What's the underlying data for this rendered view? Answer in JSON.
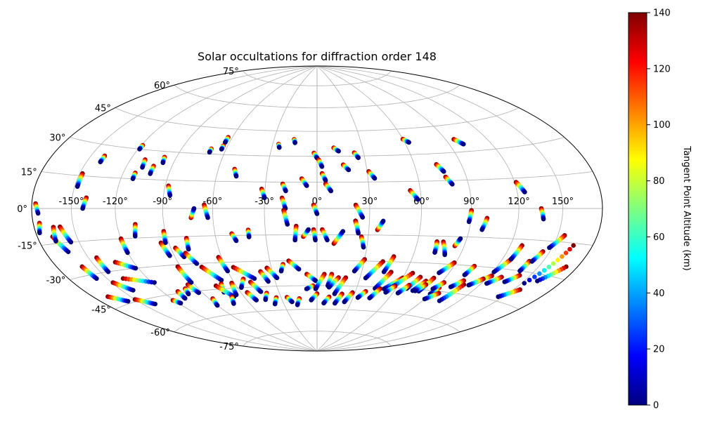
{
  "chart_data": {
    "type": "scatter",
    "projection": "hammer",
    "title": "Solar occultations for diffraction order 148",
    "grid": true,
    "lon_ticks": [
      -150,
      -120,
      -90,
      -60,
      -30,
      0,
      30,
      60,
      90,
      120,
      150
    ],
    "lon_tick_labels": [
      "-150°",
      "-120°",
      "-90°",
      "-60°",
      "-30°",
      "0°",
      "30°",
      "60°",
      "90°",
      "120°",
      "150°"
    ],
    "lat_ticks": [
      75,
      60,
      45,
      30,
      15,
      0,
      -15,
      -30,
      -45,
      -60,
      -75
    ],
    "lat_tick_labels": [
      "75°",
      "60°",
      "45°",
      "30°",
      "15°",
      "0°",
      "-15°",
      "-30°",
      "-45°",
      "-60°",
      "-75°"
    ],
    "colorbar": {
      "label": "Tangent Point Altitude (km)",
      "range": [
        0,
        140
      ],
      "ticks": [
        0,
        20,
        40,
        60,
        80,
        100,
        120,
        140
      ],
      "tick_labels": [
        "0",
        "20",
        "40",
        "60",
        "80",
        "100",
        "120",
        "140"
      ],
      "colormap": "jet",
      "colors": [
        "#00007f",
        "#0000ff",
        "#007fff",
        "#00ffff",
        "#7fff7f",
        "#ffff00",
        "#ff7f00",
        "#ff0000",
        "#7f0000"
      ]
    },
    "tracks": [
      [
        -177,
        2,
        -175,
        -2
      ],
      [
        -175,
        -6,
        -177,
        -10
      ],
      [
        -168,
        -12,
        -162,
        -19
      ],
      [
        -160,
        -8,
        -156,
        -15
      ],
      [
        -165,
        -8,
        -167,
        -14
      ],
      [
        -160,
        -26,
        -158,
        -32
      ],
      [
        -148,
        16,
        -148,
        10
      ],
      [
        -140,
        5,
        -142,
        0
      ],
      [
        -140,
        25,
        -140,
        22
      ],
      [
        -119,
        32,
        -119,
        30
      ],
      [
        -110,
        25,
        -109,
        21
      ],
      [
        -112,
        18,
        -112,
        15
      ],
      [
        -98,
        27,
        -97,
        24
      ],
      [
        -102,
        22,
        -102,
        18
      ],
      [
        -88,
        12,
        -86,
        7
      ],
      [
        -70,
        33,
        -70,
        31
      ],
      [
        -63,
        40,
        -63,
        37
      ],
      [
        -63,
        35,
        -63,
        33
      ],
      [
        -50,
        22,
        -48,
        18
      ],
      [
        -32,
        11,
        -30,
        6
      ],
      [
        -26,
        37,
        -25,
        35
      ],
      [
        -16,
        40,
        -15,
        38
      ],
      [
        -20,
        14,
        -18,
        10
      ],
      [
        -20,
        6,
        -18,
        0
      ],
      [
        -9,
        17,
        -6,
        13
      ],
      [
        -2,
        32,
        0,
        29
      ],
      [
        1,
        28,
        3,
        24
      ],
      [
        3,
        20,
        5,
        16
      ],
      [
        5,
        14,
        8,
        10
      ],
      [
        11,
        35,
        14,
        33
      ],
      [
        16,
        25,
        19,
        22
      ],
      [
        24,
        32,
        26,
        29
      ],
      [
        31,
        21,
        34,
        17
      ],
      [
        22,
        2,
        26,
        -5
      ],
      [
        54,
        10,
        58,
        5
      ],
      [
        60,
        39,
        63,
        37
      ],
      [
        74,
        24,
        77,
        20
      ],
      [
        77,
        17,
        80,
        13
      ],
      [
        96,
        37,
        100,
        34
      ],
      [
        121,
        13,
        125,
        8
      ],
      [
        135,
        0,
        137,
        -5
      ],
      [
        -2,
        2,
        0,
        -3
      ],
      [
        -19,
        -1,
        -17,
        -9
      ],
      [
        -12,
        -10,
        -13,
        -18
      ],
      [
        -8,
        -16,
        -5,
        -12
      ],
      [
        -2,
        -12,
        -1,
        -18
      ],
      [
        10,
        -20,
        15,
        -13
      ],
      [
        22,
        -7,
        24,
        -14
      ],
      [
        26,
        -16,
        28,
        -22
      ],
      [
        35,
        -12,
        38,
        -7
      ],
      [
        -144,
        -23,
        -144,
        -30
      ],
      [
        -149,
        -35,
        -141,
        -40
      ],
      [
        -138,
        -34,
        -118,
        -38
      ],
      [
        -133,
        -26,
        -122,
        -30
      ],
      [
        -121,
        -48,
        -118,
        -50
      ],
      [
        -108,
        -44,
        -109,
        -48
      ],
      [
        -100,
        -43,
        -102,
        -46
      ],
      [
        -95,
        -41,
        -93,
        -46
      ],
      [
        -92,
        -31,
        -91,
        -40
      ],
      [
        -76,
        -32,
        -68,
        -40
      ],
      [
        -62,
        -27,
        -60,
        -35
      ],
      [
        -55,
        -33,
        -44,
        -40
      ],
      [
        -52,
        -40,
        -57,
        -45
      ],
      [
        -70,
        -42,
        -73,
        -47
      ],
      [
        -75,
        -43,
        -68,
        -50
      ],
      [
        -62,
        -42,
        -65,
        -49
      ],
      [
        -48,
        -42,
        -44,
        -48
      ],
      [
        -38,
        -36,
        -35,
        -42
      ],
      [
        -33,
        -34,
        -28,
        -40
      ],
      [
        -18,
        -30,
        -12,
        -35
      ],
      [
        -22,
        -32,
        -24,
        -36
      ],
      [
        -7,
        -38,
        -1,
        -42
      ],
      [
        -3,
        -45,
        -8,
        -47
      ],
      [
        5,
        -38,
        -1,
        -47
      ],
      [
        10,
        -38,
        8,
        -45
      ],
      [
        15,
        -40,
        9,
        -46
      ],
      [
        20,
        -40,
        14,
        -50
      ],
      [
        30,
        -29,
        25,
        -36
      ],
      [
        42,
        -30,
        34,
        -40
      ],
      [
        48,
        -27,
        45,
        -36
      ],
      [
        50,
        -36,
        44,
        -46
      ],
      [
        60,
        -39,
        51,
        -46
      ],
      [
        65,
        -36,
        56,
        -45
      ],
      [
        72,
        -38,
        68,
        -45
      ],
      [
        78,
        -40,
        74,
        -46
      ],
      [
        82,
        -38,
        79,
        -46
      ],
      [
        89,
        -29,
        83,
        -35
      ],
      [
        92,
        -43,
        90,
        -47
      ],
      [
        96,
        -46,
        90,
        -50
      ],
      [
        104,
        -30,
        102,
        -35
      ],
      [
        108,
        -40,
        104,
        -50
      ],
      [
        122,
        -34,
        115,
        -38
      ],
      [
        126,
        -25,
        121,
        -32
      ],
      [
        128,
        -18,
        126,
        -25
      ],
      [
        140,
        -25,
        139,
        -30
      ],
      [
        145,
        -20,
        142,
        -25
      ],
      [
        155,
        -12,
        148,
        -18
      ],
      [
        165,
        -16,
        152,
        -35
      ],
      [
        171,
        -25,
        160,
        -33
      ],
      [
        155,
        -38,
        146,
        -43
      ],
      [
        -95,
        -18,
        -93,
        -25
      ],
      [
        -91,
        -12,
        -92,
        -18
      ],
      [
        -78,
        -16,
        -79,
        -22
      ],
      [
        -87,
        -21,
        -84,
        -26
      ],
      [
        -82,
        -24,
        -78,
        -30
      ],
      [
        -73,
        -5,
        -71,
        0
      ],
      [
        -65,
        2,
        -63,
        -5
      ],
      [
        -50,
        -14,
        -48,
        -18
      ],
      [
        -40,
        -12,
        -40,
        -16
      ],
      [
        3,
        -12,
        6,
        -18
      ],
      [
        72,
        -18,
        73,
        -24
      ],
      [
        76,
        -18,
        80,
        -25
      ],
      [
        84,
        -20,
        86,
        -16
      ],
      [
        90,
        -1,
        89,
        -7
      ],
      [
        100,
        -5,
        98,
        -11
      ],
      [
        -108,
        -8,
        -110,
        -14
      ],
      [
        -120,
        -15,
        -120,
        -22
      ],
      [
        -87,
        -50,
        -90,
        -54
      ],
      [
        -70,
        -50,
        -74,
        -54
      ],
      [
        -55,
        -48,
        -52,
        -53
      ],
      [
        -40,
        -49,
        -44,
        -53
      ],
      [
        -34,
        -52,
        -38,
        -56
      ],
      [
        -25,
        -52,
        -22,
        -55
      ],
      [
        -15,
        -53,
        -18,
        -57
      ],
      [
        0,
        -50,
        -5,
        -54
      ],
      [
        10,
        -52,
        6,
        -56
      ],
      [
        20,
        -50,
        16,
        -56
      ],
      [
        28,
        -49,
        24,
        -55
      ],
      [
        38,
        -48,
        34,
        -52
      ],
      [
        48,
        -46,
        44,
        -52
      ],
      [
        58,
        -44,
        54,
        -48
      ],
      [
        68,
        -43,
        64,
        -48
      ],
      [
        80,
        -42,
        76,
        -46
      ],
      [
        92,
        -40,
        88,
        -44
      ],
      [
        105,
        -38,
        100,
        -42
      ],
      [
        118,
        -36,
        112,
        -40
      ],
      [
        130,
        -34,
        124,
        -38
      ],
      [
        142,
        -32,
        136,
        -36
      ],
      [
        -168,
        -40,
        -158,
        -44
      ],
      [
        -150,
        -44,
        -140,
        -48
      ]
    ]
  }
}
